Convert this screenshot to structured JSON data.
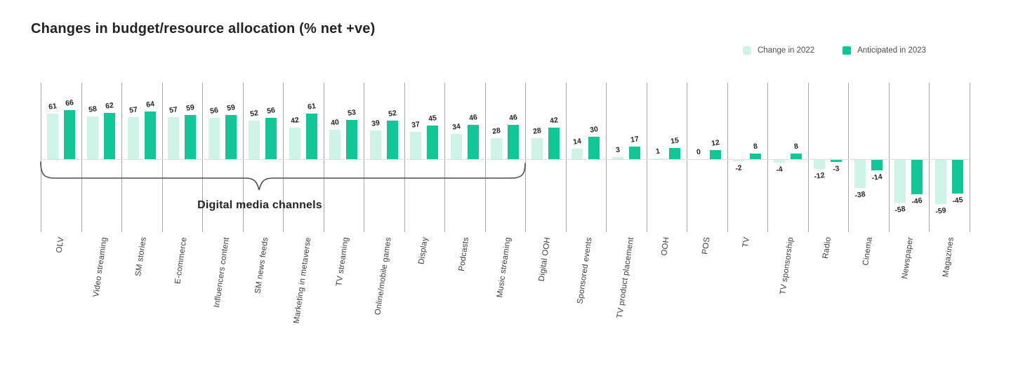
{
  "title": "Changes in budget/resource allocation (% net +ve)",
  "legend": [
    {
      "label": "Change in 2022",
      "color": "#cdf4e7"
    },
    {
      "label": "Anticipated in 2023",
      "color": "#10c795"
    }
  ],
  "annotation": {
    "label": "Digital media channels",
    "covers_categories_from": "OLV",
    "covers_categories_to": "Music streaming"
  },
  "chart_data": {
    "type": "bar",
    "title": "Changes in budget/resource allocation (% net +ve)",
    "categories": [
      "OLV",
      "Video streaming",
      "SM stories",
      "E-commerce",
      "Influencers content",
      "SM news feeds",
      "Marketing in metaverse",
      "TV streaming",
      "Online/mobile games",
      "Display",
      "Podcasts",
      "Music streaming",
      "Digital OOH",
      "Sponsored events",
      "TV product placement",
      "OOH",
      "POS",
      "TV",
      "TV sponsorship",
      "Radio",
      "Cinema",
      "Newspaper",
      "Magazines"
    ],
    "series": [
      {
        "name": "Change in 2022",
        "color": "#cdf4e7",
        "values": [
          61,
          58,
          57,
          57,
          56,
          52,
          42,
          40,
          39,
          37,
          34,
          28,
          28,
          14,
          3,
          1,
          0,
          -2,
          -4,
          -12,
          -38,
          -58,
          -59
        ]
      },
      {
        "name": "Anticipated in 2023",
        "color": "#10c795",
        "values": [
          66,
          62,
          64,
          59,
          59,
          56,
          61,
          53,
          52,
          45,
          46,
          46,
          42,
          30,
          17,
          15,
          12,
          8,
          8,
          -3,
          -14,
          -46,
          -45
        ]
      }
    ],
    "xlabel": "",
    "ylabel": "",
    "ylim": [
      -100,
      105
    ],
    "y_axis_ticks_shown": false,
    "bar_value_labels": true,
    "grid": "vertical-category-separators",
    "legend_position": "top-right"
  }
}
